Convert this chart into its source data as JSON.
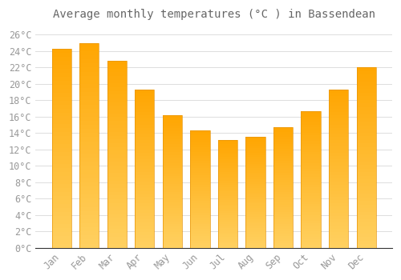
{
  "title": "Average monthly temperatures (°C ) in Bassendean",
  "months": [
    "Jan",
    "Feb",
    "Mar",
    "Apr",
    "May",
    "Jun",
    "Jul",
    "Aug",
    "Sep",
    "Oct",
    "Nov",
    "Dec"
  ],
  "values": [
    24.3,
    25.0,
    22.8,
    19.3,
    16.2,
    14.3,
    13.2,
    13.5,
    14.7,
    16.7,
    19.3,
    22.0
  ],
  "bar_color_top": "#FFA500",
  "bar_color_bottom": "#FFD060",
  "background_color": "#FFFFFF",
  "grid_color": "#DDDDDD",
  "text_color": "#999999",
  "title_color": "#666666",
  "ylim": [
    0,
    27
  ],
  "title_fontsize": 10,
  "tick_fontsize": 8.5
}
